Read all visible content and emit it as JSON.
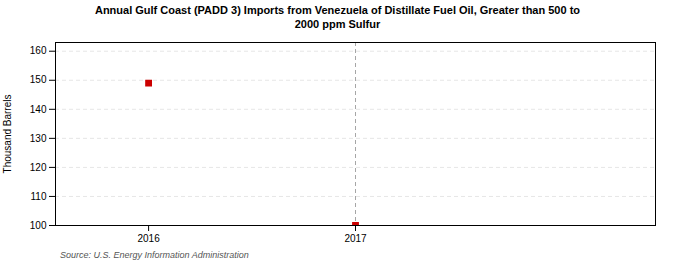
{
  "chart_data": {
    "type": "scatter",
    "title": "Annual Gulf Coast (PADD 3) Imports from Venezuela of Distillate Fuel Oil, Greater than 500 to\n2000 ppm Sulfur",
    "ylabel": "Thousand Barrels",
    "source": "Source: U.S. Energy Information Administration",
    "x": [
      2016,
      2017
    ],
    "values": [
      149,
      100
    ],
    "color": "#cc0000",
    "marker": "square",
    "xlim": [
      2015.55,
      2018.45
    ],
    "xticks": [
      2016,
      2017
    ],
    "ylim": [
      100,
      163
    ],
    "yticks": [
      100,
      110,
      120,
      130,
      140,
      150,
      160
    ],
    "grid": true,
    "vline": 2017
  }
}
